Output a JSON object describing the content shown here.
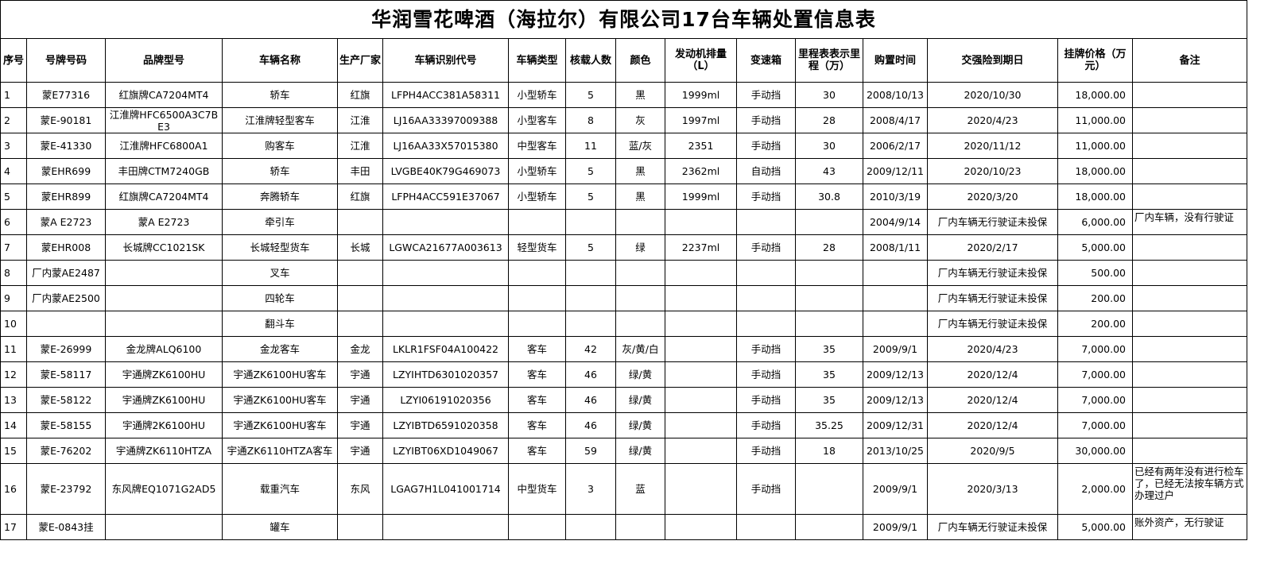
{
  "title": "华润雪花啤酒（海拉尔）有限公司17台车辆处置信息表",
  "columns": [
    "序号",
    "号牌号码",
    "品牌型号",
    "车辆名称",
    "生产厂家",
    "车辆识别代号",
    "车辆类型",
    "核载人数",
    "颜色",
    "发动机排量（L）",
    "变速箱",
    "里程表表示里程（万）",
    "购置时间",
    "交强险到期日",
    "挂牌价格（万元）",
    "备注"
  ],
  "rows": [
    [
      "1",
      "蒙E77316",
      "红旗牌CA7204MT4",
      "轿车",
      "红旗",
      "LFPH4ACC381A58311",
      "小型轿车",
      "5",
      "黑",
      "1999ml",
      "手动挡",
      "30",
      "2008/10/13",
      "2020/10/30",
      "18,000.00",
      ""
    ],
    [
      "2",
      "蒙E-90181",
      "江淮牌HFC6500A3C7BE3",
      "江淮牌轻型客车",
      "江淮",
      "LJ16AA33397009388",
      "小型客车",
      "8",
      "灰",
      "1997ml",
      "手动挡",
      "28",
      "2008/4/17",
      "2020/4/23",
      "11,000.00",
      ""
    ],
    [
      "3",
      "蒙E-41330",
      "江淮牌HFC6800A1",
      "购客车",
      "江淮",
      "LJ16AA33X57015380",
      "中型客车",
      "11",
      "蓝/灰",
      "2351",
      "手动挡",
      "30",
      "2006/2/17",
      "2020/11/12",
      "11,000.00",
      ""
    ],
    [
      "4",
      "蒙EHR699",
      "丰田牌CTM7240GB",
      "轿车",
      "丰田",
      "LVGBE40K79G469073",
      "小型轿车",
      "5",
      "黑",
      "2362ml",
      "自动挡",
      "43",
      "2009/12/11",
      "2020/10/23",
      "18,000.00",
      ""
    ],
    [
      "5",
      "蒙EHR899",
      "红旗牌CA7204MT4",
      "奔腾轿车",
      "红旗",
      "LFPH4ACC591E37067",
      "小型轿车",
      "5",
      "黑",
      "1999ml",
      "手动挡",
      "30.8",
      "2010/3/19",
      "2020/3/20",
      "18,000.00",
      ""
    ],
    [
      "6",
      "蒙A E2723",
      "蒙A E2723",
      "牵引车",
      "",
      "",
      "",
      "",
      "",
      "",
      "",
      "",
      "2004/9/14",
      "厂内车辆无行驶证未投保",
      "6,000.00",
      "厂内车辆，没有行驶证"
    ],
    [
      "7",
      "蒙EHR008",
      "长城牌CC1021SK",
      "长城轻型货车",
      "长城",
      "LGWCA21677A003613",
      "轻型货车",
      "5",
      "绿",
      "2237ml",
      "手动挡",
      "28",
      "2008/1/11",
      "2020/2/17",
      "5,000.00",
      ""
    ],
    [
      "8",
      "厂内蒙AE2487",
      "",
      "叉车",
      "",
      "",
      "",
      "",
      "",
      "",
      "",
      "",
      "",
      "厂内车辆无行驶证未投保",
      "500.00",
      ""
    ],
    [
      "9",
      "厂内蒙AE2500",
      "",
      "四轮车",
      "",
      "",
      "",
      "",
      "",
      "",
      "",
      "",
      "",
      "厂内车辆无行驶证未投保",
      "200.00",
      ""
    ],
    [
      "10",
      "",
      "",
      "翻斗车",
      "",
      "",
      "",
      "",
      "",
      "",
      "",
      "",
      "",
      "厂内车辆无行驶证未投保",
      "200.00",
      ""
    ],
    [
      "11",
      "蒙E-26999",
      "金龙牌ALQ6100",
      "金龙客车",
      "金龙",
      "LKLR1FSF04A100422",
      "客车",
      "42",
      "灰/黄/白",
      "",
      "手动挡",
      "35",
      "2009/9/1",
      "2020/4/23",
      "7,000.00",
      ""
    ],
    [
      "12",
      "蒙E-58117",
      "宇通牌ZK6100HU",
      "宇通ZK6100HU客车",
      "宇通",
      "LZYIHTD6301020357",
      "客车",
      "46",
      "绿/黄",
      "",
      "手动挡",
      "35",
      "2009/12/13",
      "2020/12/4",
      "7,000.00",
      ""
    ],
    [
      "13",
      "蒙E-58122",
      "宇通牌ZK6100HU",
      "宇通ZK6100HU客车",
      "宇通",
      "LZYI06191020356",
      "客车",
      "46",
      "绿/黄",
      "",
      "手动挡",
      "35",
      "2009/12/13",
      "2020/12/4",
      "7,000.00",
      ""
    ],
    [
      "14",
      "蒙E-58155",
      "宇通牌2K6100HU",
      "宇通ZK6100HU客车",
      "宇通",
      "LZYIBTD6591020358",
      "客车",
      "46",
      "绿/黄",
      "",
      "手动挡",
      "35.25",
      "2009/12/31",
      "2020/12/4",
      "7,000.00",
      ""
    ],
    [
      "15",
      "蒙E-76202",
      "宇通牌ZK6110HTZA",
      "宇通ZK6110HTZA客车",
      "宇通",
      "LZYIBT06XD1049067",
      "客车",
      "59",
      "绿/黄",
      "",
      "手动挡",
      "18",
      "2013/10/25",
      "2020/9/5",
      "30,000.00",
      ""
    ],
    [
      "16",
      "蒙E-23792",
      "东风牌EQ1071G2AD5",
      "载重汽车",
      "东风",
      "LGAG7H1L041001714",
      "中型货车",
      "3",
      "蓝",
      "",
      "手动挡",
      "",
      "2009/9/1",
      "2020/3/13",
      "2,000.00",
      "已经有两年没有进行检车了，已经无法按车辆方式办理过户"
    ],
    [
      "17",
      "蒙E-0843挂",
      "",
      "罐车",
      "",
      "",
      "",
      "",
      "",
      "",
      "",
      "",
      "2009/9/1",
      "厂内车辆无行驶证未投保",
      "5,000.00",
      "账外资产，无行驶证"
    ]
  ]
}
